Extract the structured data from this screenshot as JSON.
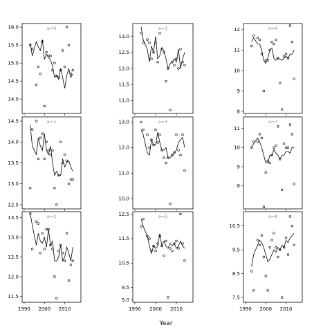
{
  "chart_data": {
    "type": "scatter",
    "title": "",
    "xlabel": "Year",
    "ylabel": "",
    "layout": "3x3 grid (facet columns left to right: a=0,a=1,a=2 | a=3,a=4,a=5 | a=6,a=7,a=8)",
    "grid": false,
    "legend": "none",
    "xlim": [
      1989,
      2018
    ],
    "x_ticks": [
      1990,
      2000,
      2010
    ],
    "x_tick_labels": [
      "1990",
      "2000",
      "2010"
    ],
    "panels": [
      {
        "title": "a=0",
        "ylim": [
          13.6,
          16.1
        ],
        "y_ticks": [
          14.0,
          14.5,
          15.0,
          15.5,
          16.0
        ],
        "y_tick_labels": [
          "14.0",
          "14.5",
          "15.0",
          "15.5",
          "16.0"
        ],
        "x": [
          1993,
          1994,
          1996,
          1997,
          1998,
          1999,
          2000,
          2001,
          2002,
          2003,
          2004,
          2005,
          2006,
          2007,
          2008,
          2009,
          2010,
          2011,
          2012,
          2013,
          2014
        ],
        "points": [
          15.5,
          15.4,
          14.4,
          14.9,
          14.7,
          15.6,
          13.8,
          15.3,
          15.2,
          15.2,
          14.8,
          15.0,
          14.65,
          14.6,
          14.8,
          15.35,
          14.9,
          16.0,
          15.5,
          14.7,
          14.8
        ],
        "fitted": [
          15.55,
          15.2,
          15.6,
          15.45,
          15.35,
          15.65,
          15.1,
          15.25,
          15.15,
          15.1,
          14.9,
          14.6,
          14.65,
          14.55,
          14.85,
          14.6,
          14.3,
          14.65,
          14.85,
          14.6,
          14.7
        ]
      },
      {
        "title": "a=1",
        "ylim": [
          12.4,
          14.6
        ],
        "y_ticks": [
          12.5,
          13.0,
          13.5,
          14.0,
          14.5
        ],
        "y_tick_labels": [
          "12.5",
          "13.0",
          "13.5",
          "14.0",
          "14.5"
        ],
        "x": [
          1993,
          1994,
          1996,
          1997,
          1998,
          1999,
          2000,
          2001,
          2002,
          2003,
          2004,
          2005,
          2006,
          2007,
          2008,
          2009,
          2010,
          2011,
          2012,
          2013,
          2014
        ],
        "points": [
          12.9,
          14.3,
          14.5,
          13.6,
          14.1,
          14.2,
          13.6,
          14.0,
          13.8,
          13.7,
          13.8,
          12.9,
          12.5,
          13.2,
          14.0,
          13.5,
          13.7,
          13.55,
          13.0,
          13.1,
          13.1
        ],
        "fitted": [
          14.4,
          13.9,
          13.7,
          14.1,
          13.9,
          13.8,
          14.2,
          13.8,
          13.7,
          13.9,
          13.5,
          13.2,
          13.3,
          13.2,
          13.2,
          13.6,
          13.4,
          13.5,
          13.55,
          13.4,
          13.3
        ]
      },
      {
        "title": "a=2",
        "ylim": [
          11.35,
          13.65
        ],
        "y_ticks": [
          11.5,
          12.0,
          12.5,
          13.0,
          13.5
        ],
        "y_tick_labels": [
          "11.5",
          "12.0",
          "12.5",
          "13.0",
          "13.5"
        ],
        "x": [
          1993,
          1994,
          1996,
          1997,
          1998,
          1999,
          2000,
          2001,
          2002,
          2003,
          2004,
          2005,
          2006,
          2007,
          2008,
          2009,
          2010,
          2011,
          2012,
          2013,
          2014
        ],
        "points": [
          13.6,
          12.7,
          13.4,
          13.35,
          12.6,
          13.1,
          12.7,
          13.2,
          13.2,
          12.8,
          12.7,
          12.0,
          11.45,
          12.65,
          12.8,
          12.6,
          12.4,
          13.1,
          11.9,
          12.3,
          12.4
        ],
        "fitted": [
          13.6,
          13.3,
          12.8,
          13.1,
          12.9,
          12.85,
          13.0,
          12.75,
          13.2,
          12.8,
          12.9,
          12.4,
          12.4,
          12.5,
          12.8,
          12.4,
          12.5,
          12.75,
          12.6,
          12.4,
          12.75
        ]
      },
      {
        "title": "a=3",
        "ylim": [
          10.6,
          13.4
        ],
        "y_ticks": [
          11.0,
          11.5,
          12.0,
          12.5,
          13.0
        ],
        "y_tick_labels": [
          "11.0",
          "11.5",
          "12.0",
          "12.5",
          "13.0"
        ],
        "x": [
          1993,
          1994,
          1996,
          1997,
          1998,
          1999,
          2000,
          2001,
          2002,
          2003,
          2004,
          2005,
          2006,
          2007,
          2008,
          2009,
          2010,
          2011,
          2012,
          2013,
          2014
        ],
        "points": [
          13.1,
          12.8,
          12.9,
          12.8,
          12.3,
          12.5,
          12.8,
          12.2,
          13.1,
          12.6,
          12.5,
          11.6,
          12.0,
          10.7,
          12.2,
          12.1,
          12.3,
          12.0,
          12.6,
          12.2,
          12.1
        ],
        "fitted": [
          13.3,
          12.9,
          12.6,
          12.2,
          12.7,
          12.5,
          13.0,
          12.3,
          12.4,
          12.65,
          12.55,
          12.3,
          12.0,
          12.15,
          12.2,
          12.3,
          12.2,
          12.6,
          12.0,
          12.3,
          12.5
        ]
      },
      {
        "title": "a=4",
        "ylim": [
          9.6,
          13.2
        ],
        "y_ticks": [
          10.0,
          11.0,
          12.0,
          13.0
        ],
        "y_tick_labels": [
          "10.0",
          "11.0",
          "12.0",
          "13.0"
        ],
        "x": [
          1993,
          1994,
          1996,
          1997,
          1998,
          1999,
          2000,
          2001,
          2002,
          2003,
          2004,
          2005,
          2006,
          2007,
          2008,
          2009,
          2010,
          2011,
          2012,
          2013,
          2014
        ],
        "points": [
          13.0,
          12.7,
          12.5,
          12.0,
          12.3,
          12.1,
          12.7,
          12.2,
          12.5,
          11.9,
          11.6,
          11.4,
          11.6,
          9.8,
          11.7,
          11.8,
          12.5,
          11.9,
          11.7,
          12.5,
          11.1
        ],
        "fitted": [
          12.7,
          12.5,
          11.8,
          11.7,
          12.3,
          12.1,
          12.1,
          12.6,
          12.2,
          11.9,
          11.9,
          12.0,
          11.6,
          11.6,
          11.7,
          11.8,
          11.9,
          12.2,
          12.3,
          12.4,
          12.0
        ]
      },
      {
        "title": "a=5",
        "ylim": [
          8.9,
          12.6
        ],
        "y_ticks": [
          9.0,
          9.5,
          10.5,
          11.5,
          12.5
        ],
        "y_tick_labels": [
          "9.0",
          "9.5",
          "10.5",
          "11.5",
          "12.5"
        ],
        "x": [
          1993,
          1994,
          1996,
          1997,
          1998,
          1999,
          2000,
          2001,
          2002,
          2003,
          2004,
          2005,
          2006,
          2007,
          2008,
          2009,
          2010,
          2011,
          2012,
          2013,
          2014
        ],
        "points": [
          12.0,
          12.3,
          11.6,
          11.5,
          11.0,
          11.2,
          11.0,
          11.3,
          11.6,
          11.2,
          10.8,
          11.4,
          9.1,
          11.1,
          11.0,
          11.3,
          11.4,
          11.1,
          12.5,
          11.3,
          10.6
        ],
        "fitted": [
          12.3,
          12.0,
          11.6,
          11.2,
          10.9,
          11.2,
          11.1,
          11.2,
          11.7,
          11.2,
          11.4,
          11.2,
          11.1,
          11.3,
          11.2,
          11.3,
          11.1,
          11.2,
          11.4,
          11.2,
          11.1
        ]
      },
      {
        "title": "a=6",
        "ylim": [
          7.9,
          12.3
        ],
        "y_ticks": [
          8,
          9,
          10,
          11,
          12
        ],
        "y_tick_labels": [
          "8",
          "9",
          "10",
          "11",
          "12"
        ],
        "x": [
          1993,
          1994,
          1996,
          1997,
          1998,
          1999,
          2000,
          2001,
          2002,
          2003,
          2004,
          2005,
          2006,
          2007,
          2008,
          2009,
          2010,
          2011,
          2012,
          2013,
          2014
        ],
        "points": [
          11.2,
          11.7,
          11.6,
          11.5,
          10.8,
          9.0,
          10.5,
          10.5,
          11.0,
          11.4,
          11.3,
          11.5,
          10.6,
          9.4,
          8.1,
          10.7,
          10.8,
          10.6,
          12.2,
          11.4,
          9.6
        ],
        "fitted": [
          11.4,
          11.6,
          11.3,
          11.3,
          11.0,
          10.5,
          10.35,
          10.6,
          11.0,
          11.1,
          10.6,
          10.5,
          10.6,
          10.55,
          10.5,
          10.6,
          10.7,
          10.6,
          10.8,
          10.8,
          11.0
        ]
      },
      {
        "title": "a=7",
        "ylim": [
          6.8,
          11.6
        ],
        "y_ticks": [
          8,
          9,
          10,
          11
        ],
        "y_tick_labels": [
          "8",
          "9",
          "10",
          "11"
        ],
        "x": [
          1993,
          1994,
          1996,
          1997,
          1998,
          1999,
          2000,
          2001,
          2002,
          2003,
          2004,
          2005,
          2006,
          2007,
          2008,
          2009,
          2010,
          2011,
          2012,
          2013,
          2014
        ],
        "points": [
          10.0,
          10.3,
          10.3,
          10.7,
          10.5,
          6.9,
          8.7,
          9.3,
          9.2,
          9.6,
          10.0,
          10.1,
          11.1,
          9.4,
          7.8,
          10.2,
          10.0,
          10.0,
          11.2,
          10.7,
          8.1
        ],
        "fitted": [
          10.0,
          10.2,
          10.5,
          10.3,
          10.0,
          9.6,
          9.2,
          9.2,
          9.6,
          9.6,
          9.9,
          9.7,
          9.6,
          9.4,
          9.6,
          9.6,
          9.8,
          9.8,
          9.7,
          10.0,
          10.0
        ]
      },
      {
        "title": "a=8",
        "ylim": [
          7.3,
          11.1
        ],
        "y_ticks": [
          7.5,
          8.5,
          9.5,
          10.5
        ],
        "y_tick_labels": [
          "7.5",
          "8.5",
          "9.5",
          "10.5"
        ],
        "x": [
          1993,
          1994,
          1996,
          1997,
          1998,
          1999,
          2000,
          2001,
          2002,
          2003,
          2004,
          2005,
          2006,
          2007,
          2008,
          2009,
          2010,
          2011,
          2012,
          2013,
          2014
        ],
        "points": [
          8.6,
          7.8,
          9.9,
          9.7,
          10.1,
          9.2,
          8.4,
          7.8,
          9.6,
          9.9,
          10.2,
          9.6,
          9.2,
          9.5,
          7.5,
          9.6,
          10.0,
          9.3,
          10.9,
          10.5,
          9.7
        ],
        "fitted": [
          8.8,
          9.3,
          9.7,
          9.9,
          9.8,
          9.6,
          9.3,
          9.0,
          9.1,
          9.3,
          9.5,
          9.4,
          9.6,
          9.5,
          9.7,
          9.6,
          9.9,
          9.8,
          10.0,
          10.1,
          10.2
        ]
      }
    ]
  }
}
